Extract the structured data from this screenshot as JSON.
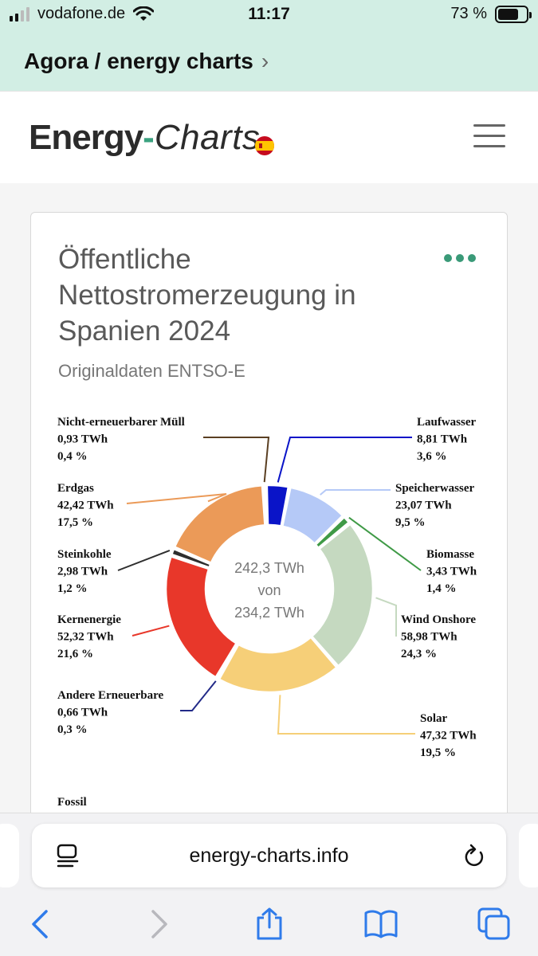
{
  "status_bar": {
    "carrier": "vodafone.de",
    "time": "11:17",
    "battery_percent": "73 %",
    "battery_level": 0.73,
    "signal_bars": 2
  },
  "back_banner": {
    "label": "Agora / energy charts"
  },
  "site": {
    "logo_part1": "Energy",
    "logo_dash": "-",
    "logo_part2": "Charts",
    "flag_icon": "spain-flag-icon",
    "menu_icon": "hamburger-menu-icon"
  },
  "card": {
    "title": "Öffentliche Nettostromerzeugung in Spanien 2024",
    "subtitle": "Originaldaten ENTSO-E"
  },
  "chart_data": {
    "type": "donut",
    "center": {
      "line1": "242,3 TWh",
      "line2": "von",
      "line3": "234,2 TWh"
    },
    "slices": [
      {
        "name": "Laufwasser",
        "value_label": "8,81 TWh",
        "percent_label": "3,6 %",
        "value": 8.81,
        "color": "#0a14c8"
      },
      {
        "name": "Speicherwasser",
        "value_label": "23,07 TWh",
        "percent_label": "9,5 %",
        "value": 23.07,
        "color": "#b5c9f7"
      },
      {
        "name": "Biomasse",
        "value_label": "3,43 TWh",
        "percent_label": "1,4 %",
        "value": 3.43,
        "color": "#3f9a46"
      },
      {
        "name": "Wind Onshore",
        "value_label": "58,98 TWh",
        "percent_label": "24,3 %",
        "value": 58.98,
        "color": "#c5d9c0"
      },
      {
        "name": "Solar",
        "value_label": "47,32 TWh",
        "percent_label": "19,5 %",
        "value": 47.32,
        "color": "#f6cf78"
      },
      {
        "name": "Andere Erneuerbare",
        "value_label": "0,66 TWh",
        "percent_label": "0,3 %",
        "value": 0.66,
        "color": "#222a88"
      },
      {
        "name": "Kernenergie",
        "value_label": "52,32 TWh",
        "percent_label": "21,6 %",
        "value": 52.32,
        "color": "#e8372a"
      },
      {
        "name": "Steinkohle",
        "value_label": "2,98 TWh",
        "percent_label": "1,2 %",
        "value": 2.98,
        "color": "#2e2e2e"
      },
      {
        "name": "Erdgas",
        "value_label": "42,42 TWh",
        "percent_label": "17,5 %",
        "value": 42.42,
        "color": "#eb9a58"
      },
      {
        "name": "Nicht-erneuerbarer Müll",
        "value_label": "0,93 TWh",
        "percent_label": "0,4 %",
        "value": 0.93,
        "color": "#5a3f22"
      }
    ],
    "footer_label": "Fossil"
  },
  "browser": {
    "url": "energy-charts.info"
  }
}
